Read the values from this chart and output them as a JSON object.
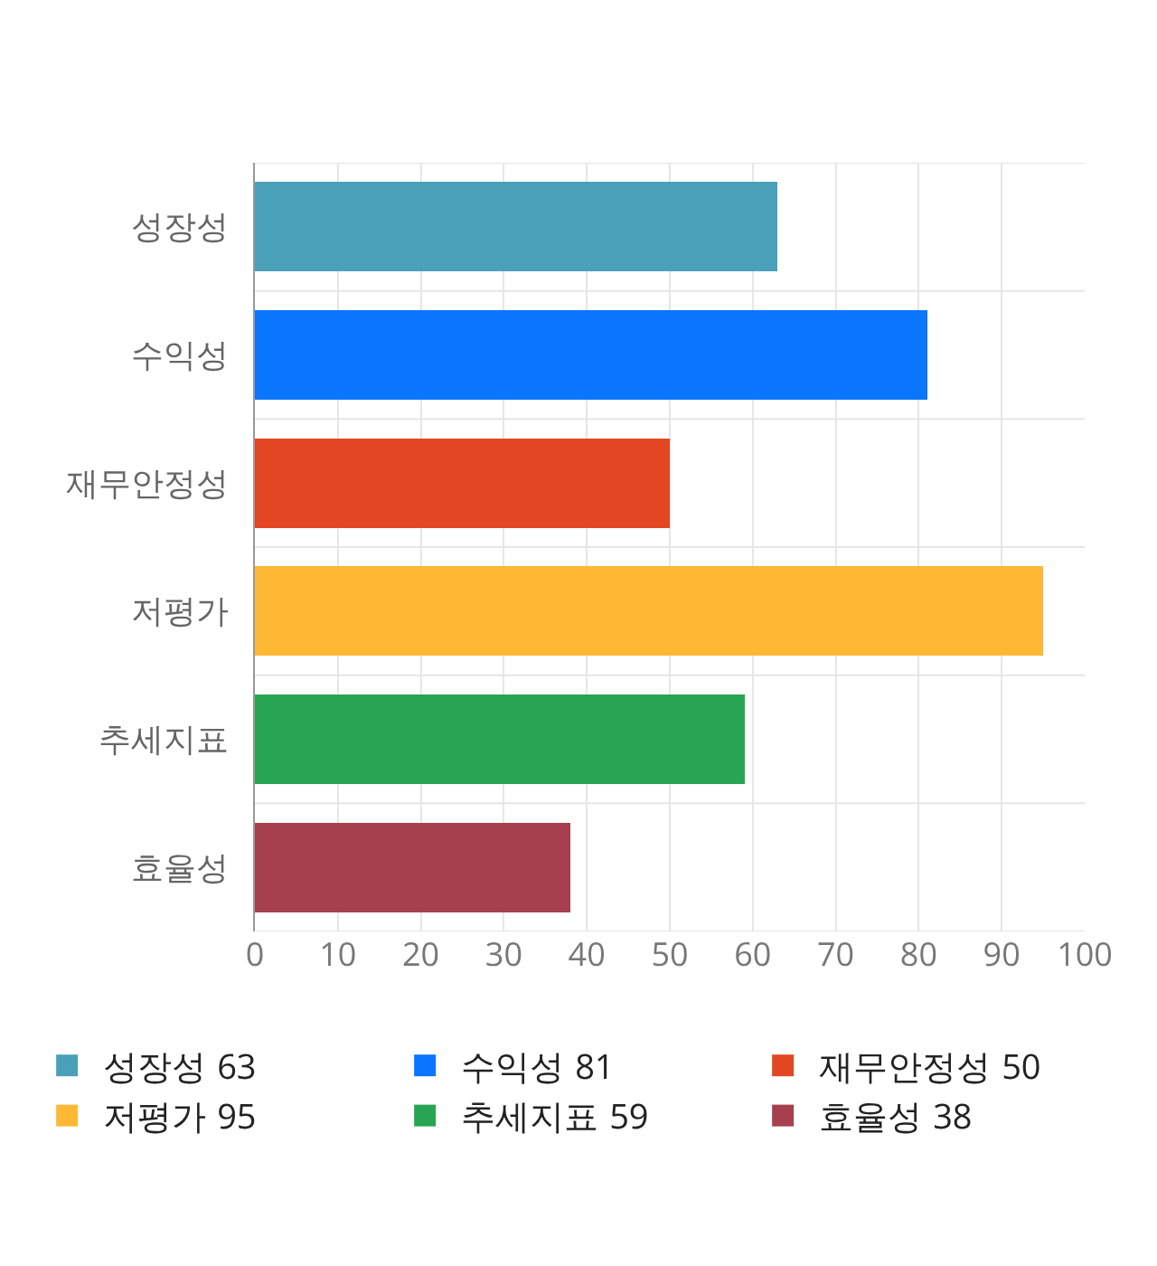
{
  "chart_data": {
    "type": "bar",
    "orientation": "horizontal",
    "stacked": true,
    "categories": [
      "성장성",
      "수익성",
      "재무안정성",
      "저평가",
      "추세지표",
      "효율성"
    ],
    "series": [
      {
        "name": "성장성",
        "color": "#4aa0b9",
        "values": [
          63,
          null,
          null,
          null,
          null,
          null
        ]
      },
      {
        "name": "수익성",
        "color": "#0a75fe",
        "values": [
          null,
          81,
          null,
          null,
          null,
          null
        ]
      },
      {
        "name": "재무안정성",
        "color": "#e24622",
        "values": [
          null,
          null,
          50,
          null,
          null,
          null
        ]
      },
      {
        "name": "저평가",
        "color": "#feb834",
        "values": [
          null,
          null,
          null,
          95,
          null,
          null
        ]
      },
      {
        "name": "추세지표",
        "color": "#28a553",
        "values": [
          null,
          null,
          null,
          null,
          59,
          null
        ]
      },
      {
        "name": "효율성",
        "color": "#a6404e",
        "values": [
          null,
          null,
          null,
          null,
          null,
          38
        ]
      }
    ],
    "xlim": [
      0,
      100
    ],
    "xticks": [
      0,
      10,
      20,
      30,
      40,
      50,
      60,
      70,
      80,
      90,
      100
    ],
    "annotations": [
      "63",
      "81",
      "50",
      "95",
      "59",
      "38"
    ],
    "grid": "x",
    "legend": "bottom"
  }
}
